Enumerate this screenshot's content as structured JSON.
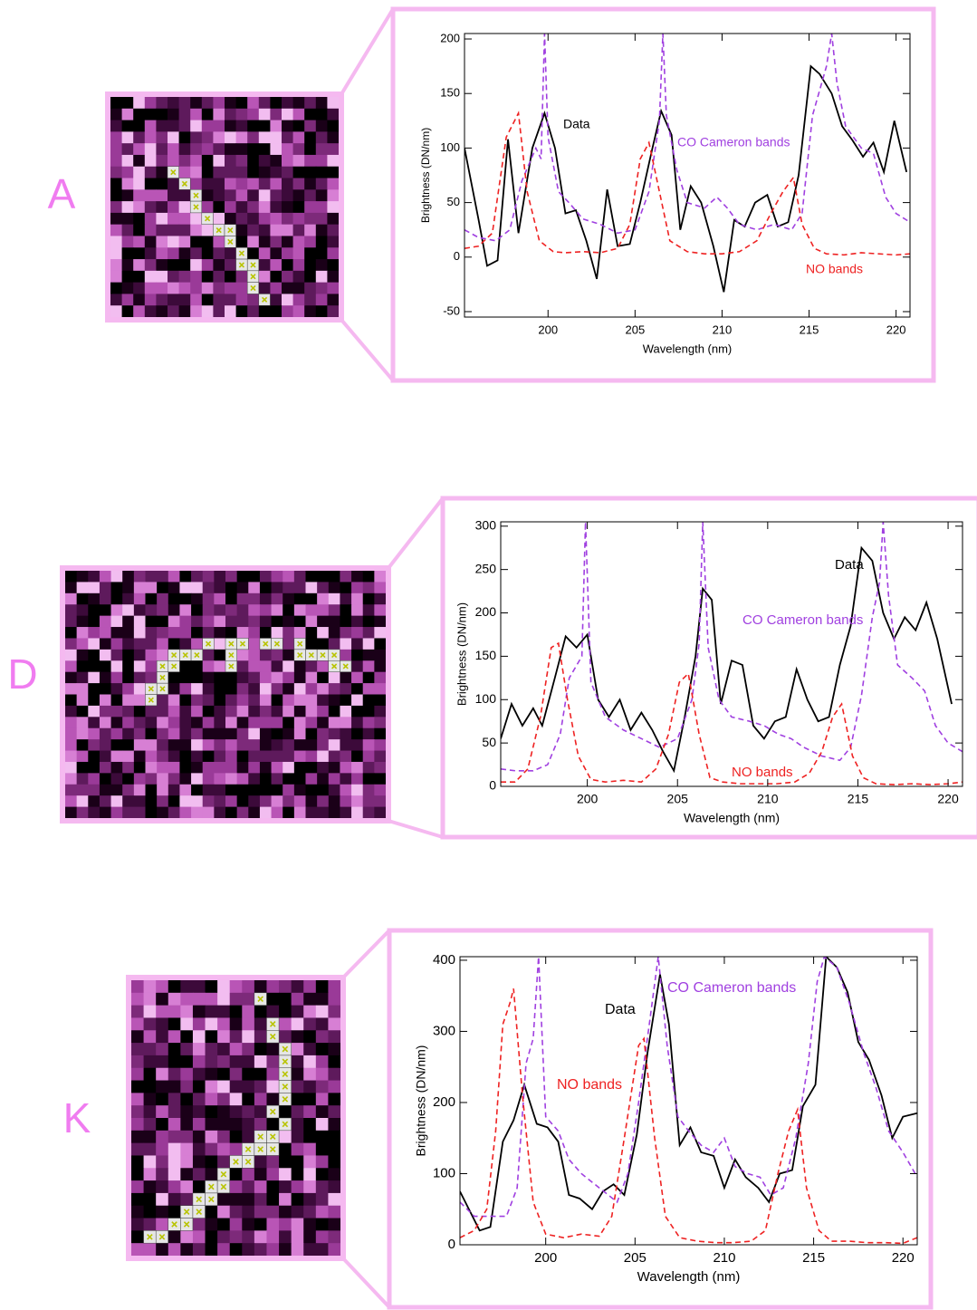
{
  "chart_data": [
    {
      "type": "line",
      "label": "A",
      "xlabel": "Wavelength (nm)",
      "ylabel": "Brightness (DN/nm)",
      "xlim": [
        195.2,
        220.8
      ],
      "ylim": [
        -55,
        205
      ],
      "xticks": [
        200,
        205,
        210,
        215,
        220
      ],
      "yticks": [
        -50,
        0,
        50,
        100,
        150,
        200
      ],
      "series": [
        {
          "name": "Data",
          "color": "#000000",
          "dash": false,
          "x": [
            195.2,
            196,
            196.5,
            197.1,
            197.7,
            198.3,
            199.1,
            199.8,
            200.4,
            201,
            201.6,
            202.2,
            202.8,
            203.4,
            204,
            204.7,
            205.3,
            206,
            206.5,
            207.1,
            207.6,
            208.2,
            208.8,
            209.5,
            210.1,
            210.7,
            211.3,
            211.9,
            212.6,
            213.2,
            213.8,
            214.4,
            215.1,
            215.6,
            216.3,
            216.9,
            217.5,
            218.1,
            218.7,
            219.3,
            219.9,
            220.6
          ],
          "values": [
            100,
            35,
            -8,
            -3,
            108,
            22,
            100,
            132,
            100,
            40,
            43,
            15,
            -20,
            62,
            10,
            12,
            50,
            100,
            134,
            112,
            25,
            65,
            50,
            10,
            -32,
            34,
            28,
            50,
            57,
            28,
            32,
            75,
            175,
            168,
            150,
            120,
            107,
            92,
            105,
            78,
            125,
            78
          ]
        },
        {
          "name": "CO Cameron bands",
          "color": "#a040e0",
          "dash": true,
          "x": [
            195.2,
            196,
            197,
            197.8,
            198.5,
            199.3,
            199.6,
            199.8,
            200,
            200.6,
            201.2,
            202,
            203,
            204,
            205,
            205.8,
            206.4,
            206.6,
            206.8,
            207.4,
            208,
            209,
            209.7,
            210.3,
            211,
            212,
            213,
            214,
            214.6,
            215.2,
            216,
            216.3,
            216.6,
            217.1,
            218,
            218.7,
            219.4,
            220,
            220.8
          ],
          "values": [
            25,
            18,
            15,
            25,
            70,
            100,
            90,
            205,
            110,
            60,
            50,
            35,
            30,
            22,
            25,
            60,
            125,
            205,
            130,
            80,
            50,
            45,
            55,
            45,
            30,
            25,
            30,
            25,
            40,
            130,
            175,
            205,
            160,
            120,
            100,
            95,
            55,
            40,
            32
          ]
        },
        {
          "name": "NO bands",
          "color": "#ee2222",
          "dash": true,
          "x": [
            195.2,
            196,
            196.8,
            197.6,
            198.3,
            198.8,
            199.5,
            200.3,
            201,
            202,
            203,
            204,
            204.7,
            205.3,
            205.8,
            206.4,
            207,
            208,
            209,
            210,
            211,
            212,
            212.8,
            213.5,
            214.1,
            214.6,
            215.3,
            216,
            217,
            218,
            219,
            220,
            220.8
          ],
          "values": [
            8,
            10,
            22,
            110,
            132,
            60,
            15,
            5,
            4,
            5,
            4,
            8,
            30,
            90,
            105,
            60,
            15,
            5,
            3,
            3,
            5,
            15,
            40,
            60,
            73,
            30,
            8,
            3,
            2,
            4,
            3,
            2,
            3
          ]
        }
      ]
    },
    {
      "type": "line",
      "label": "D",
      "xlabel": "Wavelength (nm)",
      "ylabel": "Brightness (DN/nm)",
      "xlim": [
        195.2,
        220.8
      ],
      "ylim": [
        0,
        305
      ],
      "xticks": [
        200,
        205,
        210,
        215,
        220
      ],
      "yticks": [
        0,
        50,
        100,
        150,
        200,
        250,
        300
      ],
      "series": [
        {
          "name": "Data",
          "color": "#000000",
          "dash": false,
          "x": [
            195.2,
            195.8,
            196.4,
            197,
            197.5,
            198.2,
            198.8,
            199.4,
            200,
            200.6,
            201.2,
            201.8,
            202.4,
            203,
            203.6,
            204.2,
            204.8,
            205.4,
            206,
            206.4,
            206.9,
            207.4,
            208,
            208.6,
            209.2,
            209.8,
            210.4,
            211,
            211.6,
            212.2,
            212.8,
            213.4,
            214,
            214.6,
            215.2,
            215.8,
            216.4,
            217,
            217.6,
            218.2,
            218.8,
            219.4,
            220.2
          ],
          "values": [
            55,
            95,
            70,
            90,
            70,
            125,
            173,
            160,
            175,
            100,
            80,
            100,
            65,
            85,
            65,
            40,
            18,
            80,
            150,
            228,
            215,
            95,
            145,
            140,
            70,
            55,
            75,
            80,
            135,
            100,
            75,
            80,
            140,
            185,
            275,
            260,
            200,
            170,
            195,
            180,
            212,
            170,
            95
          ]
        },
        {
          "name": "CO Cameron bands",
          "color": "#a040e0",
          "dash": true,
          "x": [
            195.2,
            196,
            197,
            197.8,
            198.5,
            199,
            199.7,
            199.9,
            200.2,
            201,
            202,
            203,
            204,
            205,
            205.8,
            206.2,
            206.4,
            206.7,
            207.3,
            208,
            209,
            209.8,
            210.6,
            211.3,
            212,
            213,
            214,
            214.6,
            215.2,
            215.8,
            216.2,
            216.4,
            216.7,
            217.2,
            218,
            218.7,
            219.3,
            220,
            220.8
          ],
          "values": [
            20,
            18,
            18,
            25,
            60,
            125,
            150,
            305,
            120,
            80,
            65,
            55,
            45,
            55,
            100,
            165,
            305,
            160,
            100,
            80,
            75,
            70,
            60,
            55,
            45,
            35,
            30,
            45,
            105,
            195,
            235,
            305,
            220,
            140,
            125,
            110,
            70,
            50,
            40
          ]
        },
        {
          "name": "NO bands",
          "color": "#ee2222",
          "dash": true,
          "x": [
            195.2,
            196,
            196.7,
            197.4,
            198,
            198.4,
            198.9,
            199.5,
            200.2,
            201,
            202,
            203,
            203.8,
            204.5,
            205.1,
            205.6,
            206.2,
            206.8,
            207.5,
            208.5,
            209.5,
            210.5,
            211.5,
            212.3,
            213,
            213.6,
            214.1,
            214.7,
            215.3,
            216,
            217,
            218,
            219,
            220,
            220.8
          ],
          "values": [
            5,
            5,
            20,
            80,
            160,
            165,
            100,
            35,
            8,
            5,
            7,
            5,
            20,
            60,
            120,
            130,
            60,
            10,
            5,
            3,
            3,
            3,
            5,
            15,
            40,
            80,
            95,
            35,
            10,
            3,
            2,
            3,
            2,
            3,
            5
          ]
        }
      ]
    },
    {
      "type": "line",
      "label": "K",
      "xlabel": "Wavelength (nm)",
      "ylabel": "Brightness (DN/nm)",
      "xlim": [
        195.2,
        220.8
      ],
      "ylim": [
        0,
        405
      ],
      "xticks": [
        200,
        205,
        210,
        215,
        220
      ],
      "yticks": [
        0,
        100,
        200,
        300,
        400
      ],
      "series": [
        {
          "name": "Data",
          "color": "#000000",
          "dash": false,
          "x": [
            195.2,
            196.3,
            196.9,
            197.6,
            198.2,
            198.8,
            199.5,
            200.1,
            200.7,
            201.3,
            201.9,
            202.6,
            203.2,
            203.8,
            204.4,
            205.1,
            205.7,
            206.4,
            206.9,
            207.5,
            208.1,
            208.7,
            209.4,
            210,
            210.6,
            211.2,
            211.9,
            212.5,
            213.1,
            213.8,
            214.4,
            215.1,
            215.7,
            216.3,
            216.9,
            217.5,
            218.1,
            218.8,
            219.4,
            220,
            220.8
          ],
          "values": [
            75,
            20,
            25,
            145,
            175,
            225,
            170,
            165,
            145,
            70,
            65,
            50,
            75,
            85,
            70,
            155,
            270,
            380,
            310,
            140,
            165,
            130,
            125,
            80,
            120,
            95,
            80,
            60,
            100,
            105,
            195,
            225,
            405,
            390,
            355,
            285,
            260,
            210,
            150,
            180,
            185
          ]
        },
        {
          "name": "CO Cameron bands",
          "color": "#a040e0",
          "dash": true,
          "x": [
            195.2,
            196,
            197,
            197.8,
            198.4,
            198.9,
            199.3,
            199.6,
            200,
            200.7,
            201.3,
            202,
            203,
            204,
            204.6,
            205.2,
            205.8,
            206.3,
            206.8,
            207.4,
            208,
            208.7,
            209.4,
            210,
            210.6,
            211.3,
            212,
            212.6,
            213.3,
            214,
            214.7,
            215.2,
            215.6,
            216.3,
            217,
            217.8,
            218.5,
            219.2,
            220,
            220.8
          ],
          "values": [
            60,
            40,
            40,
            40,
            80,
            255,
            290,
            405,
            180,
            160,
            120,
            100,
            80,
            60,
            100,
            200,
            310,
            405,
            280,
            180,
            160,
            140,
            130,
            150,
            110,
            100,
            95,
            70,
            80,
            150,
            255,
            370,
            405,
            390,
            340,
            270,
            220,
            160,
            130,
            95
          ]
        },
        {
          "name": "NO bands",
          "color": "#ee2222",
          "dash": true,
          "x": [
            195.2,
            196,
            196.7,
            197.2,
            197.6,
            198,
            198.2,
            198.7,
            199.3,
            200,
            201,
            202,
            203,
            203.7,
            204.4,
            205.2,
            205.5,
            206.1,
            206.7,
            207.5,
            208.5,
            209.5,
            210.5,
            211.5,
            212.3,
            213,
            213.6,
            214.1,
            214.6,
            215.3,
            216,
            217,
            218,
            219,
            220,
            220.8
          ],
          "values": [
            10,
            20,
            50,
            160,
            310,
            340,
            360,
            210,
            60,
            15,
            10,
            15,
            12,
            40,
            150,
            280,
            290,
            150,
            40,
            10,
            5,
            3,
            3,
            5,
            20,
            100,
            160,
            190,
            80,
            20,
            5,
            5,
            3,
            3,
            2,
            10
          ]
        }
      ]
    }
  ]
}
